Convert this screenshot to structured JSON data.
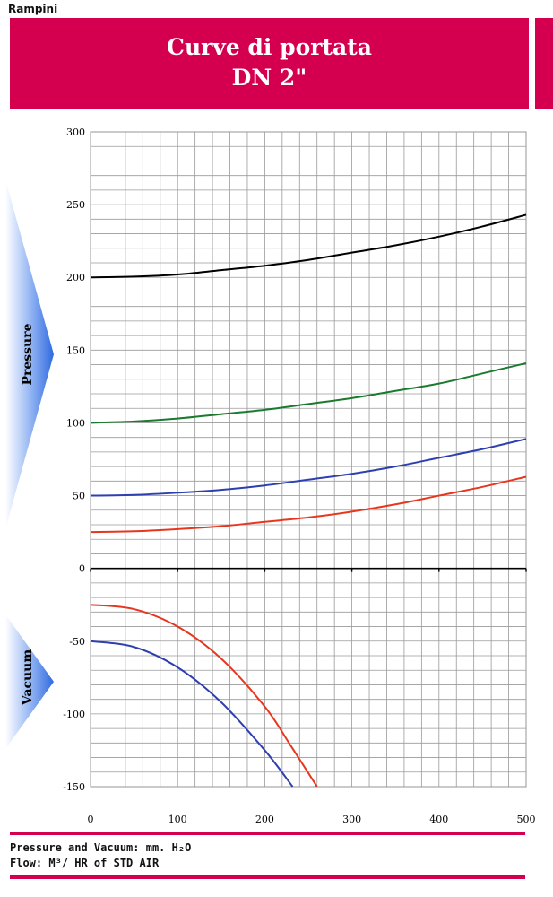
{
  "header": {
    "brand": "Rampini",
    "title_line1": "Curve di portata",
    "title_line2": "DN 2\""
  },
  "side_labels": {
    "pressure": "Pressure",
    "vacuum": "Vacuum"
  },
  "footer": {
    "line1": "Pressure and Vacuum: mm. H₂O",
    "line2": "Flow: M³/ HR of STD AIR"
  },
  "colors": {
    "brand": "#d4004f",
    "black": "#000000",
    "green": "#1a7a2e",
    "blue": "#2e3fb0",
    "red": "#e8361e"
  },
  "chart_data": {
    "type": "line",
    "title": "Curve di portata DN 2\"",
    "xlim": [
      0,
      500
    ],
    "ylim": [
      -150,
      300
    ],
    "x_ticks": [
      0,
      100,
      200,
      300,
      400,
      500
    ],
    "y_ticks": [
      300,
      250,
      200,
      150,
      100,
      50,
      0,
      -50,
      -100,
      -150
    ],
    "grid": true,
    "series": [
      {
        "color": "#000000",
        "x": [
          0,
          50,
          100,
          150,
          200,
          250,
          300,
          350,
          400,
          450,
          500
        ],
        "y": [
          200,
          200.5,
          202,
          205,
          208,
          212,
          217,
          222,
          228,
          235,
          243
        ]
      },
      {
        "color": "#1a7a2e",
        "x": [
          0,
          50,
          100,
          150,
          200,
          250,
          300,
          350,
          400,
          450,
          500
        ],
        "y": [
          100,
          101,
          103,
          106,
          109,
          113,
          117,
          122,
          127,
          134,
          141
        ]
      },
      {
        "color": "#2e3fb0",
        "x": [
          0,
          50,
          100,
          150,
          200,
          250,
          300,
          350,
          400,
          450,
          500
        ],
        "y": [
          50,
          50.5,
          52,
          54,
          57,
          61,
          65,
          70,
          76,
          82,
          89
        ]
      },
      {
        "color": "#e8361e",
        "x": [
          0,
          50,
          100,
          150,
          200,
          250,
          300,
          350,
          400,
          450,
          500
        ],
        "y": [
          25,
          25.5,
          27,
          29,
          32,
          35,
          39,
          44,
          50,
          56,
          63
        ]
      },
      {
        "color": "#e8361e",
        "x": [
          0,
          50,
          100,
          150,
          200,
          230,
          260
        ],
        "y": [
          -25,
          -28,
          -40,
          -62,
          -95,
          -122,
          -150
        ]
      },
      {
        "color": "#2e3fb0",
        "x": [
          0,
          50,
          100,
          150,
          200,
          232
        ],
        "y": [
          -50,
          -54,
          -68,
          -92,
          -125,
          -150
        ]
      }
    ]
  }
}
